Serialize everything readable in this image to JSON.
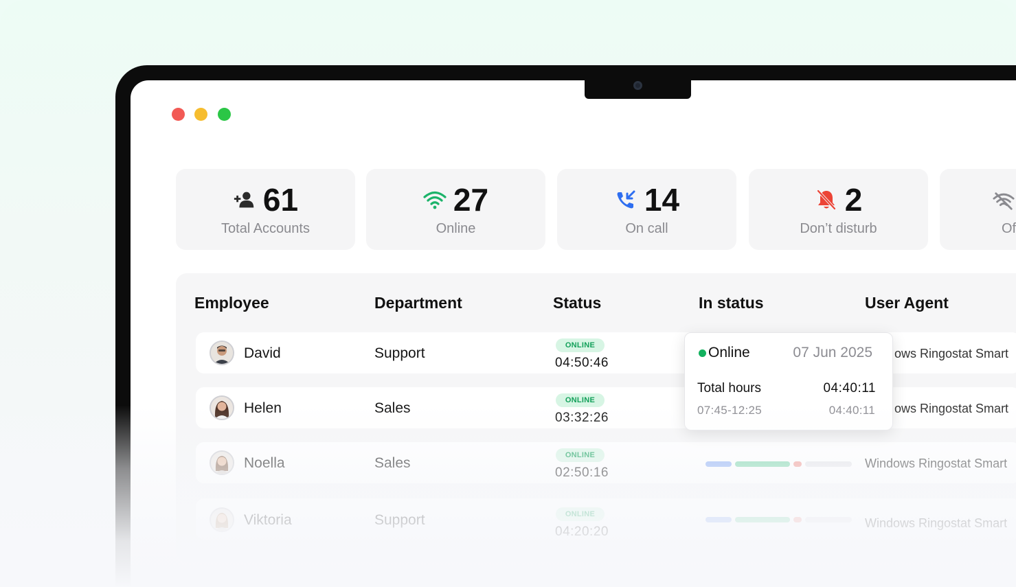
{
  "window_controls": [
    "close",
    "minimize",
    "maximize"
  ],
  "stats": [
    {
      "value": "61",
      "label": "Total Accounts",
      "icon": "add-user-icon",
      "color": "#2b2b2b"
    },
    {
      "value": "27",
      "label": "Online",
      "icon": "wifi-icon",
      "color": "#1cb36a"
    },
    {
      "value": "14",
      "label": "On call",
      "icon": "phone-incoming-icon",
      "color": "#2e6ef0"
    },
    {
      "value": "2",
      "label": "Don’t disturb",
      "icon": "bell-off-icon",
      "color": "#ec4436"
    },
    {
      "value": "",
      "label": "Of",
      "icon": "wifi-off-icon",
      "color": "#8a8a8f"
    }
  ],
  "table": {
    "columns": [
      "Employee",
      "Department",
      "Status",
      "In status",
      "User Agent"
    ],
    "rows": [
      {
        "name": "David",
        "department": "Support",
        "status": "ONLINE",
        "timer": "04:50:46",
        "agent": "ows Ringostat Smart"
      },
      {
        "name": "Helen",
        "department": "Sales",
        "status": "ONLINE",
        "timer": "03:32:26",
        "agent": "ows Ringostat Smart"
      },
      {
        "name": "Noella",
        "department": "Sales",
        "status": "ONLINE",
        "timer": "02:50:16",
        "agent": "Windows Ringostat Smart"
      },
      {
        "name": "Viktoria",
        "department": "Support",
        "status": "ONLINE",
        "timer": "04:20:20",
        "agent": "Windows Ringostat Smart"
      }
    ]
  },
  "tooltip": {
    "status": "Online",
    "date": "07 Jun 2025",
    "total_label": "Total hours",
    "total_time": "04:40:11",
    "range": "07:45-12:25",
    "range_time": "04:40:11"
  },
  "colors": {
    "online_green": "#12b15e",
    "badge_bg": "#d7f5e4",
    "bar_blue": "#8fb0f5",
    "bar_green": "#7fd6ad",
    "bar_red": "#f29a93",
    "bar_grey": "#e6e6ea"
  }
}
